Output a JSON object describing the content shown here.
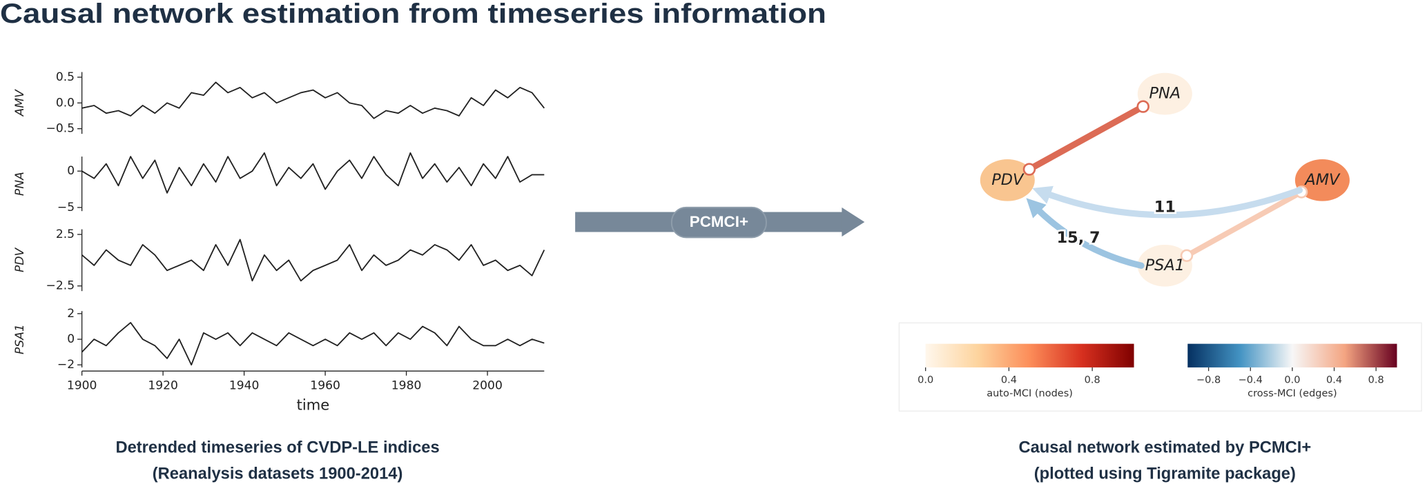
{
  "header": {
    "title": "Causal network estimation from timeseries information"
  },
  "chart_data": [
    {
      "type": "line",
      "ylabel": "AMV",
      "color": "#222222",
      "x": [
        1900,
        1903,
        1906,
        1909,
        1912,
        1915,
        1918,
        1921,
        1924,
        1927,
        1930,
        1933,
        1936,
        1939,
        1942,
        1945,
        1948,
        1951,
        1954,
        1957,
        1960,
        1963,
        1966,
        1969,
        1972,
        1975,
        1978,
        1981,
        1984,
        1987,
        1990,
        1993,
        1996,
        1999,
        2002,
        2005,
        2008,
        2011,
        2014
      ],
      "values": [
        -0.1,
        -0.05,
        -0.2,
        -0.15,
        -0.25,
        -0.05,
        -0.2,
        0.0,
        -0.1,
        0.2,
        0.15,
        0.4,
        0.2,
        0.3,
        0.1,
        0.2,
        0.0,
        0.1,
        0.2,
        0.25,
        0.1,
        0.2,
        0.0,
        -0.05,
        -0.3,
        -0.15,
        -0.2,
        -0.05,
        -0.2,
        -0.1,
        -0.15,
        -0.25,
        0.1,
        -0.05,
        0.25,
        0.1,
        0.3,
        0.2,
        -0.1
      ],
      "xlim": [
        1900,
        2014
      ],
      "ylim": [
        -0.6,
        0.6
      ],
      "yticks": [
        0.5,
        {
          "value": 0,
          "label": "0.0"
        },
        {
          "value": -0.5,
          "label": "−0.5"
        }
      ]
    },
    {
      "type": "line",
      "ylabel": "PNA",
      "color": "#222222",
      "x": [
        1900,
        1903,
        1906,
        1909,
        1912,
        1915,
        1918,
        1921,
        1924,
        1927,
        1930,
        1933,
        1936,
        1939,
        1942,
        1945,
        1948,
        1951,
        1954,
        1957,
        1960,
        1963,
        1966,
        1969,
        1972,
        1975,
        1978,
        1981,
        1984,
        1987,
        1990,
        1993,
        1996,
        1999,
        2002,
        2005,
        2008,
        2011,
        2014
      ],
      "values": [
        0,
        -1,
        1,
        -2,
        2,
        -1,
        1.5,
        -3,
        0.5,
        -2,
        1,
        -1.5,
        2,
        -1,
        0,
        2.5,
        -2,
        0.5,
        -1,
        1,
        -2.5,
        0,
        1.5,
        -1,
        2,
        -0.5,
        -2,
        2.5,
        -1,
        1,
        -1.5,
        0.5,
        -2,
        1,
        -1,
        2,
        -1.5,
        -0.5,
        -0.5
      ],
      "xlim": [
        1900,
        2014
      ],
      "ylim": [
        -5.5,
        2
      ],
      "yticks": [
        0,
        {
          "value": -5,
          "label": "−5"
        }
      ]
    },
    {
      "type": "line",
      "ylabel": "PDV",
      "color": "#222222",
      "x": [
        1900,
        1903,
        1906,
        1909,
        1912,
        1915,
        1918,
        1921,
        1924,
        1927,
        1930,
        1933,
        1936,
        1939,
        1942,
        1945,
        1948,
        1951,
        1954,
        1957,
        1960,
        1963,
        1966,
        1969,
        1972,
        1975,
        1978,
        1981,
        1984,
        1987,
        1990,
        1993,
        1996,
        1999,
        2002,
        2005,
        2008,
        2011,
        2014
      ],
      "values": [
        0.5,
        -0.5,
        1,
        0,
        -0.5,
        1.5,
        0.5,
        -1,
        -0.5,
        0,
        -1,
        1.5,
        -0.5,
        2,
        -2,
        0.5,
        -1,
        0,
        -2,
        -1,
        -0.5,
        0,
        1.5,
        -1,
        0.5,
        -0.5,
        0,
        1,
        0.5,
        1.5,
        1,
        0,
        1.5,
        -0.5,
        0,
        -1,
        -0.5,
        -1.5,
        1
      ],
      "xlim": [
        1900,
        2014
      ],
      "ylim": [
        -3,
        3
      ],
      "yticks": [
        2.5,
        {
          "value": -2.5,
          "label": "−2.5"
        }
      ]
    },
    {
      "type": "line",
      "ylabel": "PSA1",
      "color": "#222222",
      "xlabel": "time",
      "x": [
        1900,
        1903,
        1906,
        1909,
        1912,
        1915,
        1918,
        1921,
        1924,
        1927,
        1930,
        1933,
        1936,
        1939,
        1942,
        1945,
        1948,
        1951,
        1954,
        1957,
        1960,
        1963,
        1966,
        1969,
        1972,
        1975,
        1978,
        1981,
        1984,
        1987,
        1990,
        1993,
        1996,
        1999,
        2002,
        2005,
        2008,
        2011,
        2014
      ],
      "values": [
        -1,
        0,
        -0.5,
        0.5,
        1.3,
        0,
        -0.5,
        -1.5,
        0,
        -2,
        0.5,
        0,
        0.5,
        -0.5,
        0.5,
        0,
        -0.5,
        0.5,
        0,
        -0.5,
        0,
        -0.5,
        0.5,
        0,
        0.5,
        -0.5,
        0.5,
        0,
        1,
        0.5,
        -0.5,
        1,
        0,
        -0.5,
        -0.5,
        0,
        -0.5,
        0,
        -0.3
      ],
      "xlim": [
        1900,
        2014
      ],
      "ylim": [
        -2.2,
        2.2
      ],
      "yticks": [
        2,
        0,
        {
          "value": -2,
          "label": "−2"
        }
      ],
      "xticks": [
        1900,
        1920,
        1940,
        1960,
        1980,
        2000
      ]
    }
  ],
  "left_caption": [
    "Detrended timeseries of CVDP-LE indices",
    "(Reanalysis datasets 1900-2014)"
  ],
  "arrow": {
    "label": "PCMCI+",
    "color": "#778899"
  },
  "network": {
    "nodes": [
      {
        "label": "PNA",
        "color": "#fdf0e2"
      },
      {
        "label": "PDV",
        "color": "#f9c590"
      },
      {
        "label": "AMV",
        "color": "#f38b5b"
      },
      {
        "label": "PSA1",
        "color": "#fdf0e2"
      }
    ],
    "edges": [
      {
        "color": "#dc6b55"
      },
      {
        "color": "#f7cbb5"
      },
      {
        "label": "11",
        "color": "#c6dcee"
      },
      {
        "label": "15, 7",
        "color": "#9cc4e1"
      }
    ]
  },
  "colorbars": [
    {
      "label": "auto-MCI (nodes)",
      "lim": [
        0,
        1
      ],
      "colors": [
        "#fff7ec",
        "#fdd49e",
        "#fc8d59",
        "#d7301f",
        "#7f0000"
      ],
      "ticks": [
        {
          "value": 0,
          "label": "0.0"
        },
        0.4,
        0.8
      ]
    },
    {
      "label": "cross-MCI (edges)",
      "lim": [
        -1,
        1
      ],
      "colors": [
        "#053061",
        "#4393c3",
        "#f7f7f7",
        "#f4a582",
        "#67001f"
      ],
      "ticks": [
        {
          "value": -0.8,
          "label": "−0.8"
        },
        {
          "value": -0.4,
          "label": "−0.4"
        },
        {
          "value": 0,
          "label": "0.0"
        },
        0.4,
        0.8
      ]
    }
  ],
  "right_caption": [
    "Causal network estimated by PCMCI+",
    "(plotted using Tigramite package)"
  ]
}
